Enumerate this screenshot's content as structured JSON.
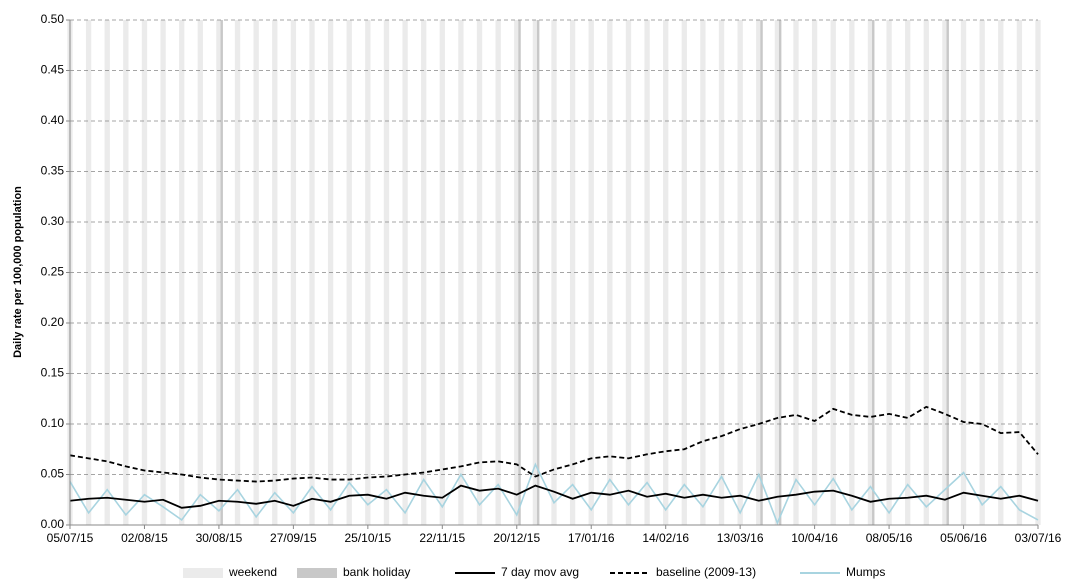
{
  "chart_data": {
    "type": "line",
    "y_label": "Daily rate per 100,000 population",
    "categories": [
      "05/07/15",
      null,
      null,
      null,
      "02/08/15",
      null,
      null,
      null,
      "30/08/15",
      null,
      null,
      null,
      "27/09/15",
      null,
      null,
      null,
      "25/10/15",
      null,
      null,
      null,
      "22/11/15",
      null,
      null,
      null,
      "20/12/15",
      null,
      null,
      null,
      "17/01/16",
      null,
      null,
      null,
      "14/02/16",
      null,
      null,
      null,
      "13/03/16",
      null,
      null,
      null,
      "10/04/16",
      null,
      null,
      null,
      "08/05/16",
      null,
      null,
      null,
      "05/06/16",
      null,
      null,
      null,
      "03/07/16"
    ],
    "ylim": [
      0,
      0.5
    ],
    "yticks": [
      {
        "value": 0,
        "label": "0.00"
      },
      {
        "value": 0.05,
        "label": "0.05"
      },
      {
        "value": 0.1,
        "label": "0.10"
      },
      {
        "value": 0.15,
        "label": "0.15"
      },
      {
        "value": 0.2,
        "label": "0.20"
      },
      {
        "value": 0.25,
        "label": "0.25"
      },
      {
        "value": 0.3,
        "label": "0.30"
      },
      {
        "value": 0.35,
        "label": "0.35"
      },
      {
        "value": 0.4,
        "label": "0.40"
      },
      {
        "value": 0.45,
        "label": "0.45"
      },
      {
        "value": 0.5,
        "label": "0.50"
      }
    ],
    "grid": true,
    "legend": "bottom",
    "series": [
      {
        "name": "weekend",
        "mark": "band",
        "color": "#ebebeb",
        "values": [
          0.5,
          0.5,
          0.5,
          0.5,
          0.5,
          0.5,
          0.5,
          0.5,
          0.5,
          0.5,
          0.5,
          0.5,
          0.5,
          0.5,
          0.5,
          0.5,
          0.5,
          0.5,
          0.5,
          0.5,
          0.5,
          0.5,
          0.5,
          0.5,
          0.5,
          0.5,
          0.5,
          0.5,
          0.5,
          0.5,
          0.5,
          0.5,
          0.5,
          0.5,
          0.5,
          0.5,
          0.5,
          0.5,
          0.5,
          0.5,
          0.5,
          0.5,
          0.5,
          0.5,
          0.5,
          0.5,
          0.5,
          0.5,
          0.5,
          0.5,
          0.5,
          0.5,
          0.5
        ]
      },
      {
        "name": "bank holiday",
        "mark": "band",
        "color": "#c8c8c8",
        "values": [
          null,
          null,
          null,
          null,
          null,
          null,
          null,
          null,
          0.5,
          null,
          null,
          null,
          null,
          null,
          null,
          null,
          null,
          null,
          null,
          null,
          null,
          null,
          null,
          null,
          0.5,
          0.5,
          null,
          null,
          null,
          null,
          null,
          null,
          null,
          null,
          null,
          null,
          null,
          0.5,
          0.5,
          null,
          null,
          null,
          null,
          0.5,
          null,
          null,
          null,
          0.5,
          null,
          null,
          null,
          null,
          null
        ]
      },
      {
        "name": "7 day mov avg",
        "mark": "line",
        "color": "#000000",
        "dash": "solid",
        "values": [
          0.024,
          0.026,
          0.027,
          0.025,
          0.023,
          0.025,
          0.017,
          0.019,
          0.024,
          0.023,
          0.021,
          0.024,
          0.019,
          0.026,
          0.023,
          0.029,
          0.03,
          0.026,
          0.032,
          0.029,
          0.027,
          0.039,
          0.034,
          0.036,
          0.03,
          0.039,
          0.033,
          0.026,
          0.032,
          0.03,
          0.034,
          0.028,
          0.031,
          0.027,
          0.03,
          0.027,
          0.029,
          0.024,
          0.028,
          0.03,
          0.033,
          0.034,
          0.029,
          0.023,
          0.026,
          0.027,
          0.029,
          0.025,
          0.032,
          0.029,
          0.026,
          0.029,
          0.024
        ]
      },
      {
        "name": "baseline (2009-13)",
        "mark": "line",
        "color": "#000000",
        "dash": "dashed",
        "values": [
          0.069,
          0.066,
          0.063,
          0.058,
          0.054,
          0.052,
          0.05,
          0.047,
          0.045,
          0.044,
          0.043,
          0.044,
          0.046,
          0.047,
          0.045,
          0.045,
          0.047,
          0.048,
          0.05,
          0.052,
          0.055,
          0.058,
          0.062,
          0.063,
          0.06,
          0.048,
          0.055,
          0.06,
          0.066,
          0.068,
          0.066,
          0.07,
          0.073,
          0.075,
          0.083,
          0.088,
          0.095,
          0.1,
          0.106,
          0.109,
          0.103,
          0.115,
          0.109,
          0.107,
          0.11,
          0.106,
          0.117,
          0.11,
          0.102,
          0.1,
          0.091,
          0.092,
          0.07
        ]
      },
      {
        "name": "Mumps",
        "mark": "line",
        "color": "#a8d4e0",
        "dash": "solid",
        "values": [
          0.043,
          0.012,
          0.035,
          0.01,
          0.03,
          0.018,
          0.005,
          0.03,
          0.014,
          0.035,
          0.008,
          0.032,
          0.012,
          0.038,
          0.015,
          0.042,
          0.02,
          0.035,
          0.012,
          0.045,
          0.018,
          0.05,
          0.02,
          0.04,
          0.01,
          0.06,
          0.022,
          0.04,
          0.015,
          0.045,
          0.02,
          0.042,
          0.015,
          0.04,
          0.018,
          0.048,
          0.012,
          0.05,
          0.002,
          0.045,
          0.02,
          0.046,
          0.015,
          0.038,
          0.012,
          0.04,
          0.018,
          0.035,
          0.052,
          0.02,
          0.038,
          0.015,
          0.005
        ]
      }
    ]
  }
}
